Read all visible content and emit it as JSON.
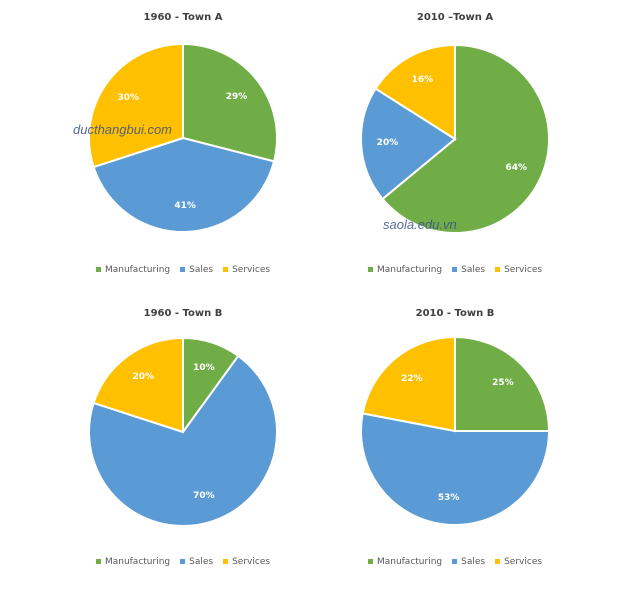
{
  "colors": {
    "Manufacturing": "#70AD47",
    "Sales": "#5B9BD5",
    "Services": "#FFC000"
  },
  "legend": [
    "Manufacturing",
    "Sales",
    "Services"
  ],
  "watermarks": [
    "ducthangbui.com",
    "saola.edu.vn"
  ],
  "chart_data": [
    {
      "type": "pie",
      "title": "1960 - Town A",
      "categories": [
        "Manufacturing",
        "Sales",
        "Services"
      ],
      "values": [
        29,
        41,
        30
      ],
      "labels": [
        "29%",
        "41%",
        "30%"
      ]
    },
    {
      "type": "pie",
      "title": "2010 –Town A",
      "categories": [
        "Manufacturing",
        "Sales",
        "Services"
      ],
      "values": [
        64,
        20,
        16
      ],
      "labels": [
        "64%",
        "20%",
        "16%"
      ]
    },
    {
      "type": "pie",
      "title": "1960 - Town B",
      "categories": [
        "Manufacturing",
        "Sales",
        "Services"
      ],
      "values": [
        10,
        70,
        20
      ],
      "labels": [
        "10%",
        "70%",
        "20%"
      ]
    },
    {
      "type": "pie",
      "title": "2010 - Town B",
      "categories": [
        "Manufacturing",
        "Sales",
        "Services"
      ],
      "values": [
        25,
        53,
        22
      ],
      "labels": [
        "25%",
        "53%",
        "22%"
      ]
    }
  ]
}
